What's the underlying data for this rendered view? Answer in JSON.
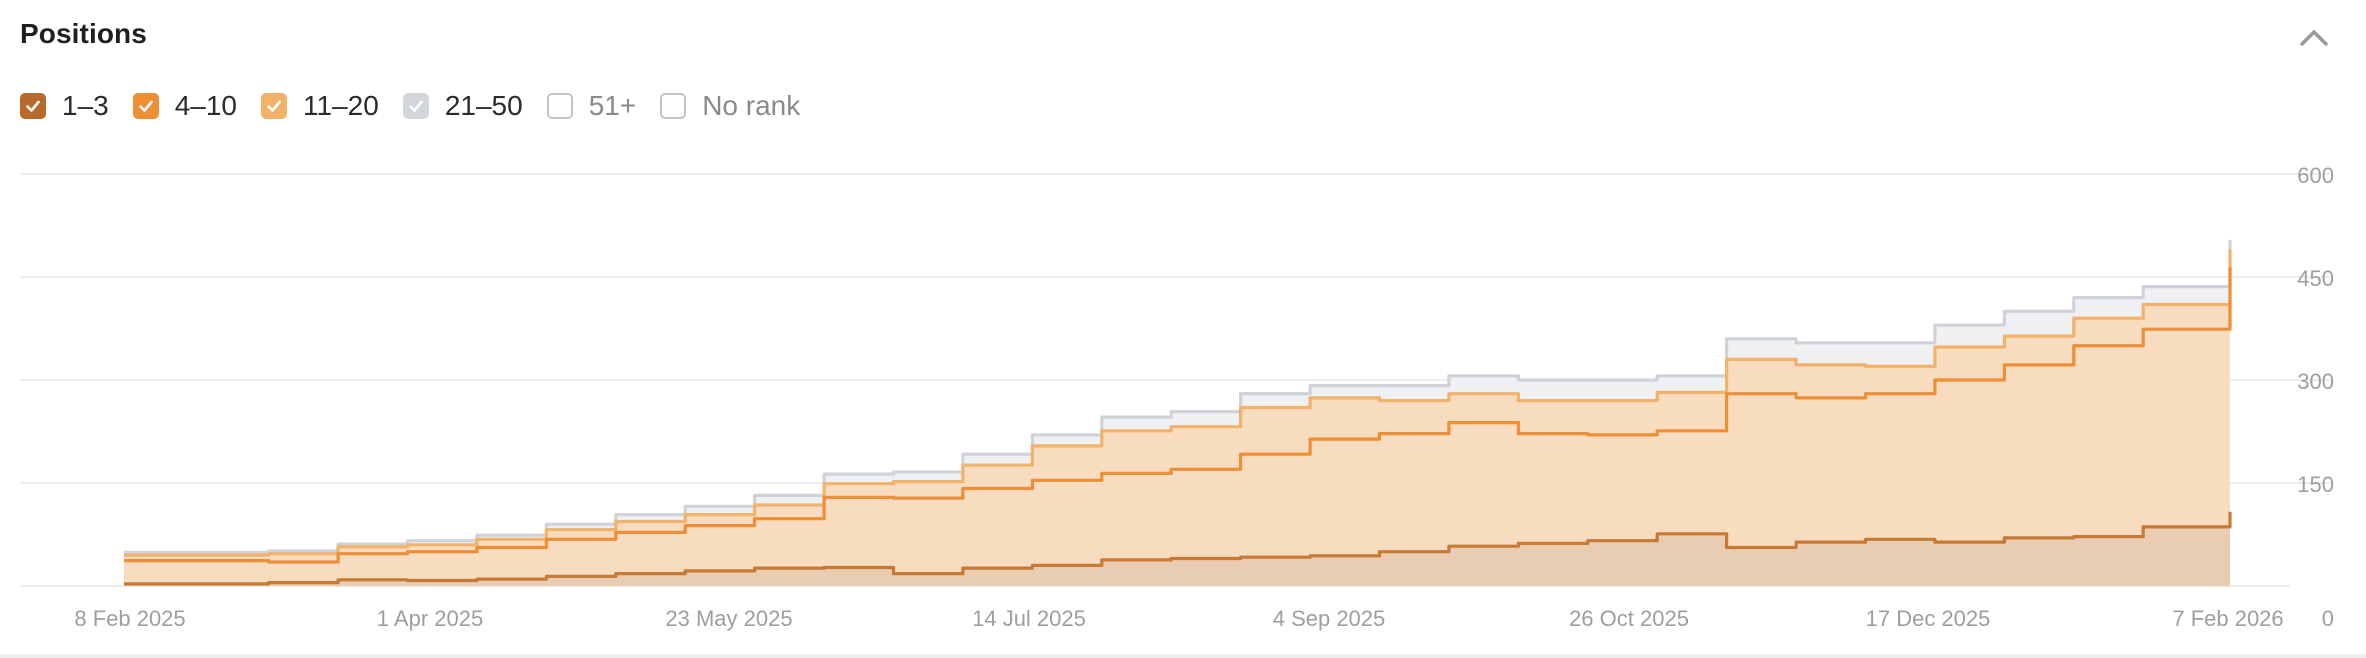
{
  "header": {
    "title": "Positions",
    "collapse_icon": "chevron-up-icon"
  },
  "legend": [
    {
      "label": "1–3",
      "checked": true,
      "color": "#b86a2c"
    },
    {
      "label": "4–10",
      "checked": true,
      "color": "#ee8e35"
    },
    {
      "label": "11–20",
      "checked": true,
      "color": "#f3b26a"
    },
    {
      "label": "21–50",
      "checked": true,
      "color": "#d2d6dc"
    },
    {
      "label": "51+",
      "checked": false,
      "color": "#ffffff"
    },
    {
      "label": "No rank",
      "checked": false,
      "color": "#ffffff"
    }
  ],
  "chart_data": {
    "type": "area",
    "title": "Positions",
    "stacked": true,
    "x_tick_labels": [
      "8 Feb 2025",
      "1 Apr 2025",
      "23 May 2025",
      "14 Jul 2025",
      "4 Sep 2025",
      "26 Oct 2025",
      "17 Dec 2025",
      "7 Feb 2026"
    ],
    "y_tick_labels": [
      "600",
      "450",
      "300",
      "150",
      "0"
    ],
    "ylim": [
      0,
      600
    ],
    "grid": true,
    "legend_position": "top-left",
    "x": [
      "2025-02-08",
      "2025-02-21",
      "2025-03-05",
      "2025-03-17",
      "2025-03-29",
      "2025-04-10",
      "2025-04-22",
      "2025-05-04",
      "2025-05-16",
      "2025-05-28",
      "2025-06-09",
      "2025-06-21",
      "2025-07-03",
      "2025-07-15",
      "2025-07-27",
      "2025-08-08",
      "2025-08-20",
      "2025-09-01",
      "2025-09-13",
      "2025-09-25",
      "2025-10-07",
      "2025-10-19",
      "2025-10-31",
      "2025-11-12",
      "2025-11-24",
      "2025-12-06",
      "2025-12-18",
      "2025-12-30",
      "2026-01-11",
      "2026-01-23",
      "2026-02-07"
    ],
    "series": [
      {
        "name": "1–3",
        "color": "#c77a36",
        "values": [
          3,
          3,
          5,
          9,
          8,
          10,
          14,
          18,
          22,
          26,
          27,
          18,
          26,
          30,
          38,
          40,
          42,
          44,
          50,
          58,
          62,
          66,
          76,
          56,
          64,
          68,
          64,
          70,
          72,
          86,
          108
        ]
      },
      {
        "name": "4–10",
        "color": "#ee8e35",
        "values": [
          34,
          34,
          30,
          38,
          42,
          46,
          54,
          60,
          66,
          72,
          102,
          110,
          116,
          124,
          126,
          130,
          150,
          170,
          172,
          180,
          160,
          154,
          150,
          224,
          210,
          212,
          236,
          252,
          278,
          288,
          356
        ]
      },
      {
        "name": "11–20",
        "color": "#f3b26a",
        "values": [
          8,
          8,
          12,
          10,
          10,
          12,
          14,
          16,
          16,
          20,
          20,
          24,
          34,
          50,
          62,
          62,
          68,
          60,
          48,
          42,
          48,
          50,
          56,
          50,
          48,
          40,
          48,
          42,
          40,
          36,
          26
        ]
      },
      {
        "name": "21–50",
        "color": "#cfd3d9",
        "values": [
          4,
          4,
          4,
          4,
          6,
          6,
          8,
          10,
          12,
          14,
          14,
          14,
          16,
          16,
          20,
          22,
          20,
          18,
          22,
          26,
          30,
          30,
          24,
          30,
          32,
          34,
          32,
          36,
          30,
          26,
          14
        ]
      }
    ]
  }
}
